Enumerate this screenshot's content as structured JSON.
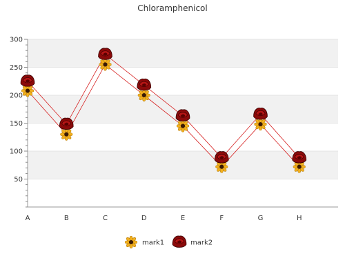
{
  "chart_data": {
    "type": "line",
    "title": "Chloramphenicol",
    "xlabel": "",
    "ylabel": "",
    "categories": [
      "A",
      "B",
      "C",
      "D",
      "E",
      "F",
      "G",
      "H"
    ],
    "ylim": [
      0,
      300
    ],
    "yticks": [
      50,
      100,
      150,
      200,
      250,
      300
    ],
    "grid": "horizontal bands",
    "legend_position": "bottom",
    "series": [
      {
        "name": "mark1",
        "values": [
          208,
          130,
          255,
          200,
          145,
          72,
          148,
          72
        ],
        "color": "#d62020",
        "marker": "sunflower-icon"
      },
      {
        "name": "mark2",
        "values": [
          225,
          148,
          273,
          218,
          163,
          88,
          166,
          88
        ],
        "color": "#d62020",
        "marker": "rose-icon"
      }
    ]
  }
}
